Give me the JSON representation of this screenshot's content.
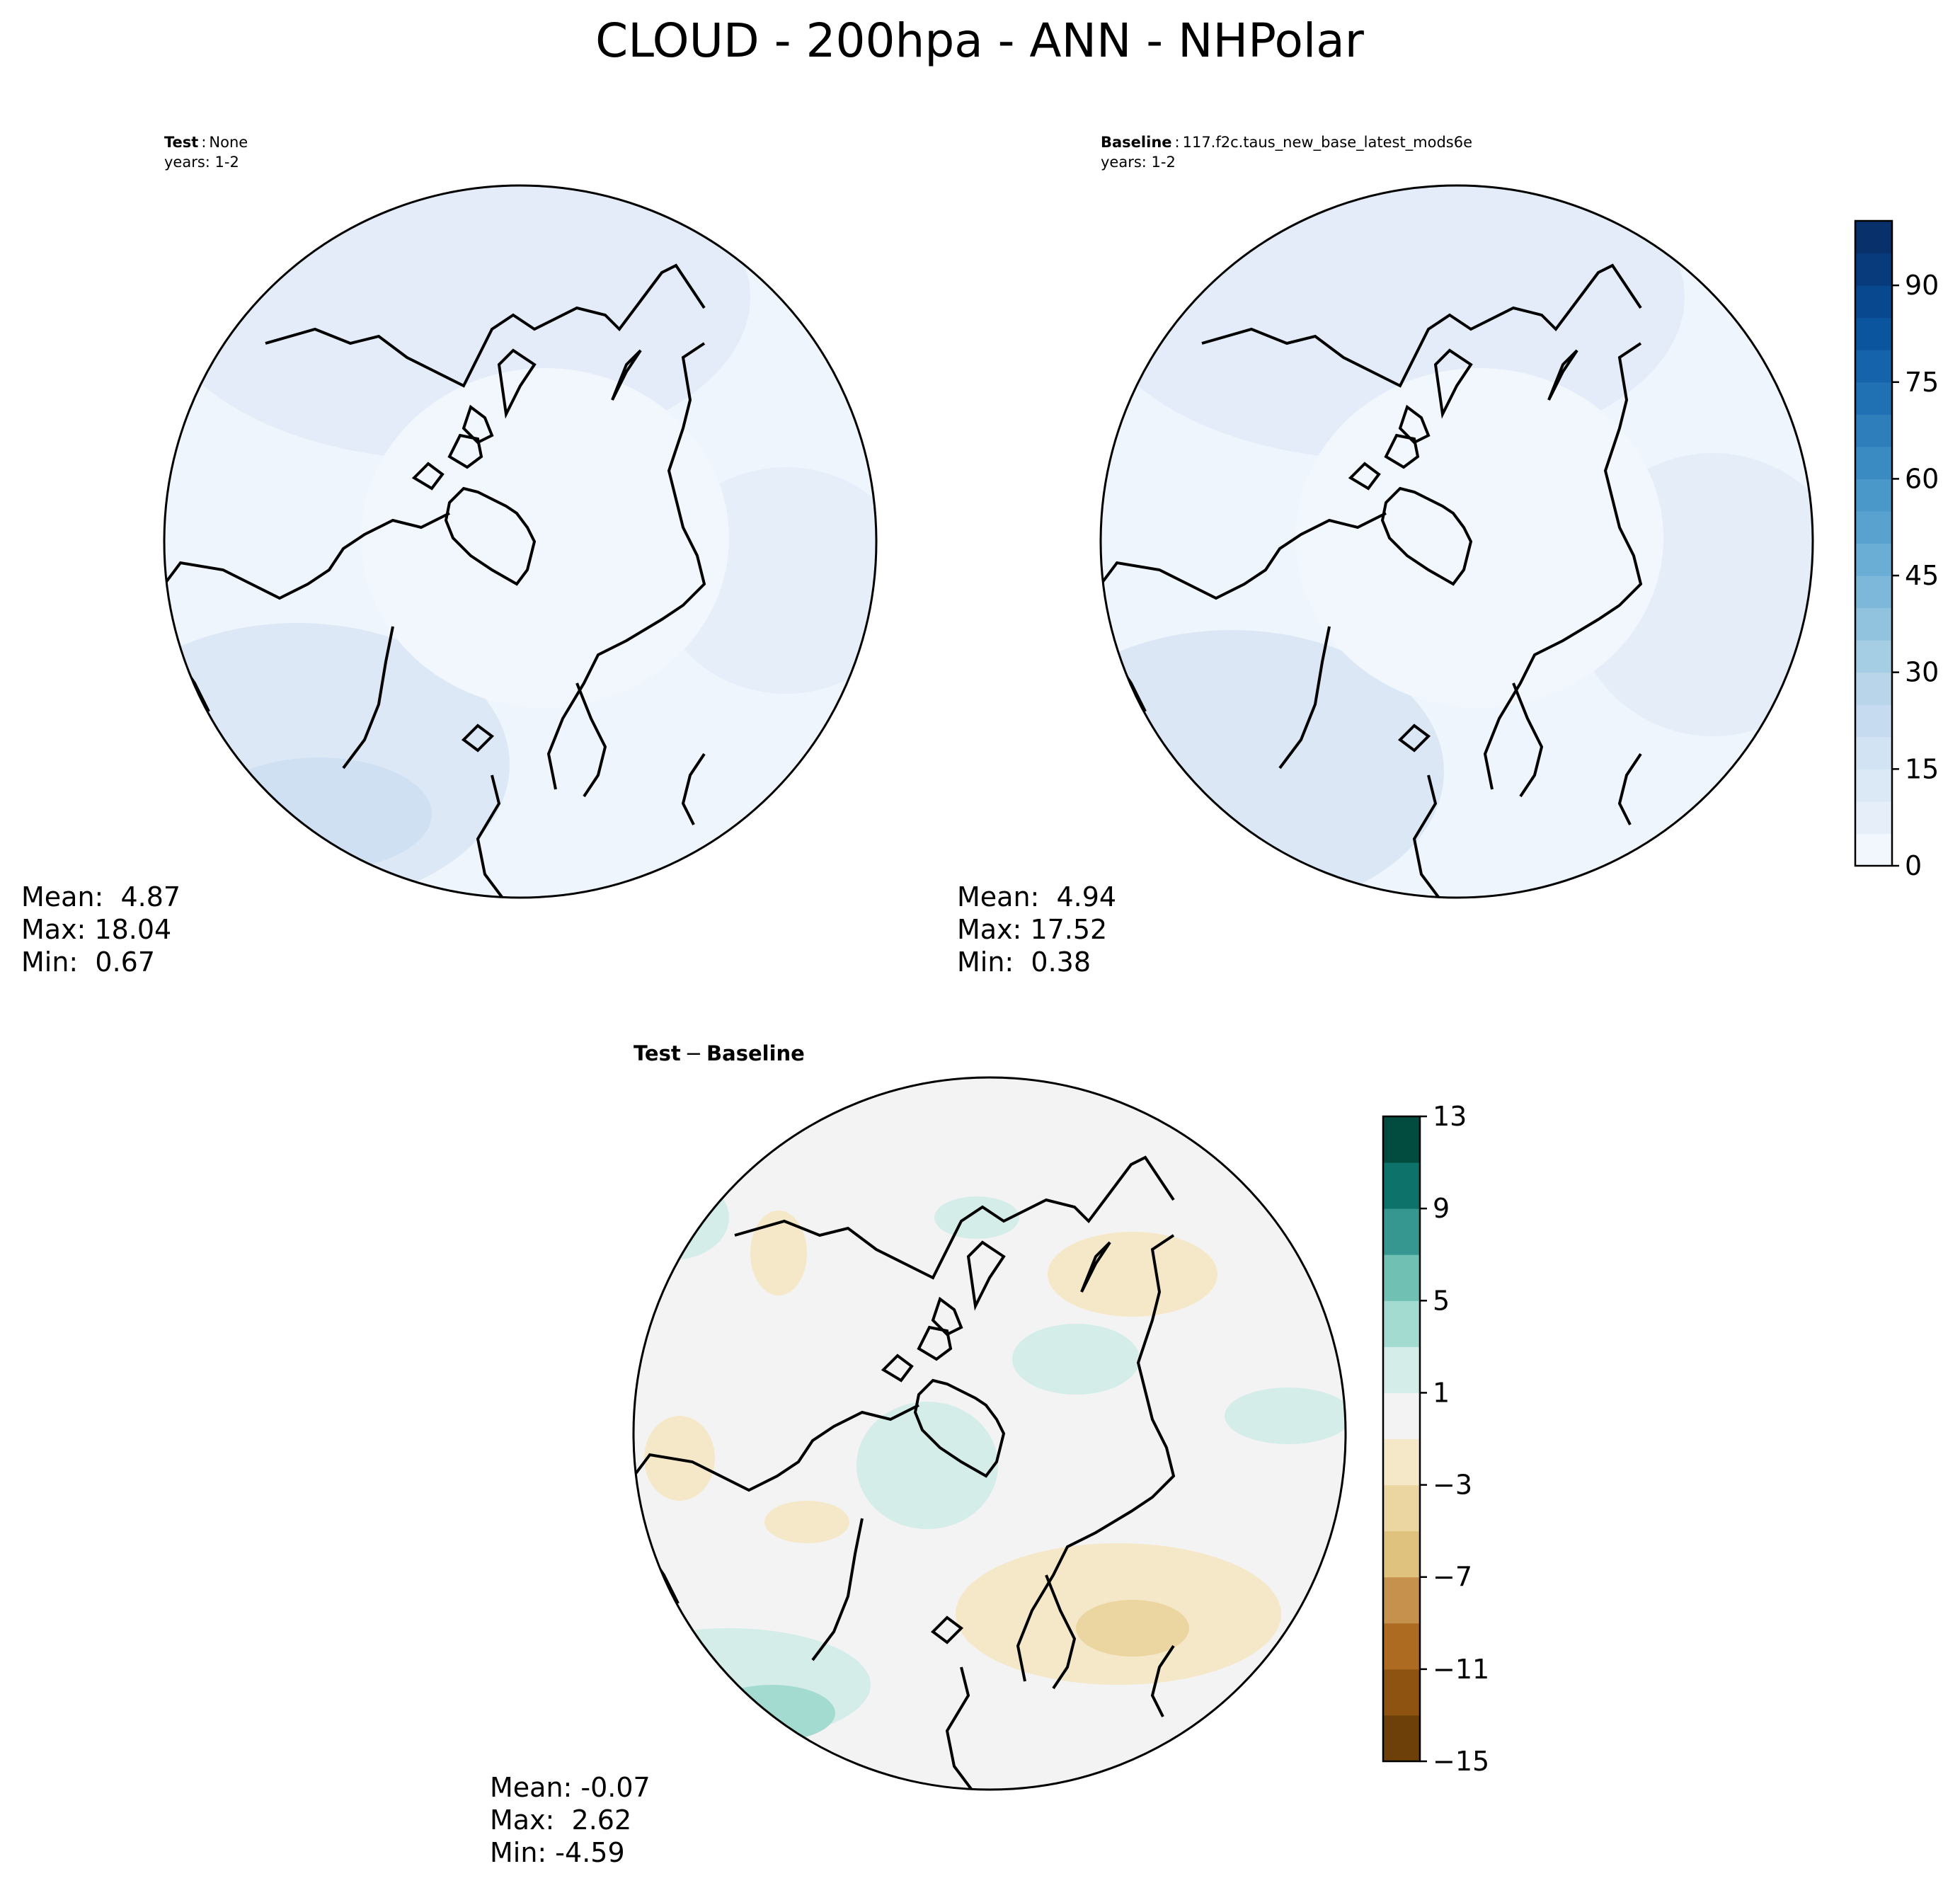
{
  "title": "CLOUD - 200hpa - ANN - NHPolar",
  "panels": {
    "test": {
      "label_bold": "Test",
      "label_sep": ":",
      "label_value": "None",
      "years": "years: 1-2",
      "stats": {
        "mean": "Mean:  4.87",
        "max": "Max: 18.04",
        "min": "Min:  0.67"
      }
    },
    "baseline": {
      "label_bold": "Baseline",
      "label_sep": ":",
      "label_value": "117.f2c.taus_new_base_latest_mods6e",
      "years": "years: 1-2",
      "stats": {
        "mean": "Mean:  4.94",
        "max": "Max: 17.52",
        "min": "Min:  0.38"
      }
    },
    "diff": {
      "label_test": "Test",
      "label_minus": "−",
      "label_base": "Baseline",
      "stats": {
        "mean": "Mean: -0.07",
        "max": "Max:  2.62",
        "min": "Min: -4.59"
      }
    }
  },
  "colorbars": {
    "main": {
      "ticks": [
        "0",
        "15",
        "30",
        "45",
        "60",
        "75",
        "90"
      ],
      "tick_values": [
        0,
        15,
        30,
        45,
        60,
        75,
        90
      ],
      "range": [
        0,
        100
      ],
      "colors": [
        "#f1f7fd",
        "#e6eff9",
        "#dbe9f6",
        "#d2e3f3",
        "#c6dbef",
        "#b8d5ea",
        "#a5cde3",
        "#91c3de",
        "#7db8da",
        "#6aaed6",
        "#59a1cf",
        "#4a98c9",
        "#3a8bc2",
        "#2e7ebc",
        "#2070b4",
        "#1563aa",
        "#0b559f",
        "#08488e",
        "#083b7c",
        "#08306b"
      ]
    },
    "diff": {
      "ticks": [
        "13",
        "9",
        "5",
        "1",
        "−3",
        "−7",
        "−11",
        "−15"
      ],
      "tick_values": [
        13,
        9,
        5,
        1,
        -3,
        -7,
        -11,
        -15
      ],
      "range": [
        -15,
        13
      ],
      "colors": [
        "#6c4008",
        "#8e5310",
        "#ad6b22",
        "#c5914c",
        "#dfc27d",
        "#ebd5a0",
        "#f5e8c8",
        "#f3f3f3",
        "#d4ede8",
        "#a3dbd1",
        "#70c1b3",
        "#35978f",
        "#0c726a",
        "#014c3f"
      ]
    }
  },
  "map": {
    "projection": "north-polar-stereographic",
    "coastline_color": "#000000",
    "ocean_color": "#eef5fc"
  }
}
